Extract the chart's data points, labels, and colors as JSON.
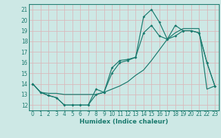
{
  "xlabel": "Humidex (Indice chaleur)",
  "background_color": "#cde8e5",
  "grid_color": "#d9b8bb",
  "line_color": "#1a7a6e",
  "spine_color": "#1a7a6e",
  "xlim": [
    -0.5,
    23.5
  ],
  "ylim": [
    11.5,
    21.5
  ],
  "xticks": [
    0,
    1,
    2,
    3,
    4,
    5,
    6,
    7,
    8,
    9,
    10,
    11,
    12,
    13,
    14,
    15,
    16,
    17,
    18,
    19,
    20,
    21,
    22,
    23
  ],
  "yticks": [
    12,
    13,
    14,
    15,
    16,
    17,
    18,
    19,
    20,
    21
  ],
  "line1_x": [
    0,
    1,
    2,
    3,
    4,
    5,
    6,
    7,
    8,
    9,
    10,
    11,
    12,
    13,
    14,
    15,
    16,
    17,
    18,
    19,
    20,
    21,
    22,
    23
  ],
  "line1_y": [
    14,
    13.2,
    12.9,
    12.7,
    12.0,
    12.0,
    12.0,
    12.0,
    13.5,
    13.2,
    15.5,
    16.2,
    16.3,
    16.5,
    20.3,
    21.0,
    19.8,
    18.2,
    19.5,
    19.0,
    19.0,
    18.8,
    16.0,
    13.8
  ],
  "line2_x": [
    0,
    1,
    2,
    3,
    4,
    5,
    6,
    7,
    8,
    9,
    10,
    11,
    12,
    13,
    14,
    15,
    16,
    17,
    18,
    19,
    20,
    21,
    22,
    23
  ],
  "line2_y": [
    14,
    13.2,
    12.9,
    12.7,
    12.0,
    12.0,
    12.0,
    12.0,
    13.0,
    13.2,
    15.0,
    16.0,
    16.2,
    16.5,
    18.8,
    19.5,
    18.5,
    18.2,
    18.5,
    19.0,
    19.0,
    18.8,
    16.0,
    13.8
  ],
  "line3_x": [
    0,
    1,
    2,
    3,
    4,
    5,
    6,
    7,
    8,
    9,
    10,
    11,
    12,
    13,
    14,
    15,
    16,
    17,
    18,
    19,
    20,
    21,
    22,
    23
  ],
  "line3_y": [
    14,
    13.2,
    13.1,
    13.1,
    13.0,
    13.0,
    13.0,
    13.0,
    13.0,
    13.2,
    13.5,
    13.8,
    14.2,
    14.8,
    15.3,
    16.2,
    17.2,
    18.2,
    18.8,
    19.2,
    19.2,
    19.2,
    13.5,
    13.8
  ],
  "tick_fontsize": 5.5,
  "xlabel_fontsize": 6.5
}
